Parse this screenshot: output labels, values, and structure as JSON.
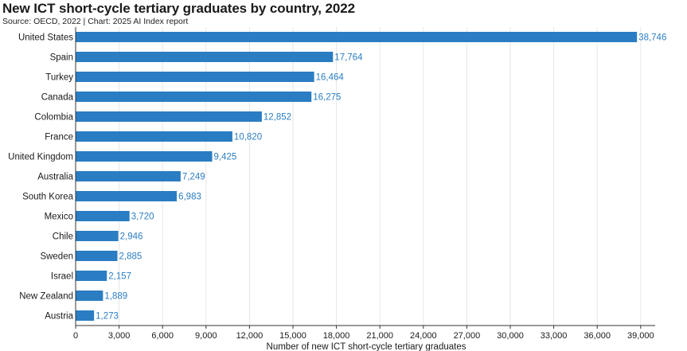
{
  "chart_data": {
    "type": "bar",
    "orientation": "horizontal",
    "title": "New ICT short-cycle tertiary graduates by country, 2022",
    "subtitle": "Source: OECD, 2022 | Chart: 2025 AI Index report",
    "xlabel": "Number of new ICT short-cycle tertiary graduates",
    "ylabel": "",
    "xlim": [
      0,
      40000
    ],
    "xticks": [
      0,
      3000,
      6000,
      9000,
      12000,
      15000,
      18000,
      21000,
      24000,
      27000,
      30000,
      33000,
      36000,
      39000
    ],
    "xtick_labels": [
      "0",
      "3,000",
      "6,000",
      "9,000",
      "12,000",
      "15,000",
      "18,000",
      "21,000",
      "24,000",
      "27,000",
      "30,000",
      "33,000",
      "36,000",
      "39,000"
    ],
    "categories": [
      "United States",
      "Spain",
      "Turkey",
      "Canada",
      "Colombia",
      "France",
      "United Kingdom",
      "Australia",
      "South Korea",
      "Mexico",
      "Chile",
      "Sweden",
      "Israel",
      "New Zealand",
      "Austria"
    ],
    "values": [
      38746,
      17764,
      16464,
      16275,
      12852,
      10820,
      9425,
      7249,
      6983,
      3720,
      2946,
      2885,
      2157,
      1889,
      1273
    ],
    "value_labels": [
      "38,746",
      "17,764",
      "16,464",
      "16,275",
      "12,852",
      "10,820",
      "9,425",
      "7,249",
      "6,983",
      "3,720",
      "2,946",
      "2,885",
      "2,157",
      "1,889",
      "1,273"
    ],
    "grid": true,
    "colors": {
      "bar": "#2a7dc2",
      "value_label": "#2a7dc2",
      "grid": "#e6e6e6",
      "axis": "#333333",
      "text": "#1a1a1a"
    }
  }
}
